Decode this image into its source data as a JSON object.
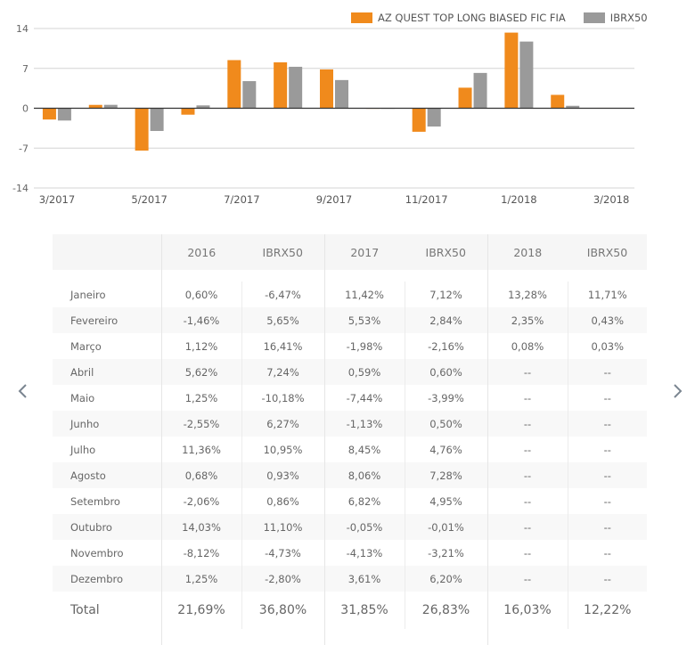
{
  "colors": {
    "fund": "#f08a1c",
    "benchmark": "#9a9a9a",
    "grid": "#d4d4d4",
    "zero_line": "#333333"
  },
  "chart_data": {
    "type": "bar",
    "title": "",
    "xlabel": "",
    "ylabel": "",
    "ylim": [
      -14,
      14
    ],
    "yticks": [
      14,
      7,
      0,
      -7,
      -14
    ],
    "grid": true,
    "legend_position": "top-right",
    "categories": [
      "3/2017",
      "4/2017",
      "5/2017",
      "6/2017",
      "7/2017",
      "8/2017",
      "9/2017",
      "10/2017",
      "11/2017",
      "12/2017",
      "1/2018",
      "2/2018",
      "3/2018"
    ],
    "xtick_labels": [
      "3/2017",
      "",
      "5/2017",
      "",
      "7/2017",
      "",
      "9/2017",
      "",
      "11/2017",
      "",
      "1/2018",
      "",
      "3/2018"
    ],
    "series": [
      {
        "name": "AZ QUEST TOP LONG BIASED FIC FIA",
        "color": "#f08a1c",
        "values": [
          -1.98,
          0.59,
          -7.44,
          -1.13,
          8.45,
          8.06,
          6.82,
          -0.05,
          -4.13,
          3.61,
          13.28,
          2.35,
          0.08
        ]
      },
      {
        "name": "IBRX50",
        "color": "#9a9a9a",
        "values": [
          -2.16,
          0.6,
          -3.99,
          0.5,
          4.76,
          7.28,
          4.95,
          -0.01,
          -3.21,
          6.2,
          11.71,
          0.43,
          0.03
        ]
      }
    ]
  },
  "legend": {
    "fund_label": "AZ QUEST TOP LONG BIASED FIC FIA",
    "benchmark_label": "IBRX50"
  },
  "nav": {
    "prev_icon": "chevron-left-icon",
    "next_icon": "chevron-right-icon"
  },
  "table": {
    "headers": [
      "",
      "2016",
      "IBRX50",
      "2017",
      "IBRX50",
      "2018",
      "IBRX50"
    ],
    "rows": [
      {
        "month": "Janeiro",
        "values": [
          "0,60%",
          "-6,47%",
          "11,42%",
          "7,12%",
          "13,28%",
          "11,71%"
        ]
      },
      {
        "month": "Fevereiro",
        "values": [
          "-1,46%",
          "5,65%",
          "5,53%",
          "2,84%",
          "2,35%",
          "0,43%"
        ]
      },
      {
        "month": "Março",
        "values": [
          "1,12%",
          "16,41%",
          "-1,98%",
          "-2,16%",
          "0,08%",
          "0,03%"
        ]
      },
      {
        "month": "Abril",
        "values": [
          "5,62%",
          "7,24%",
          "0,59%",
          "0,60%",
          "--",
          "--"
        ]
      },
      {
        "month": "Maio",
        "values": [
          "1,25%",
          "-10,18%",
          "-7,44%",
          "-3,99%",
          "--",
          "--"
        ]
      },
      {
        "month": "Junho",
        "values": [
          "-2,55%",
          "6,27%",
          "-1,13%",
          "0,50%",
          "--",
          "--"
        ]
      },
      {
        "month": "Julho",
        "values": [
          "11,36%",
          "10,95%",
          "8,45%",
          "4,76%",
          "--",
          "--"
        ]
      },
      {
        "month": "Agosto",
        "values": [
          "0,68%",
          "0,93%",
          "8,06%",
          "7,28%",
          "--",
          "--"
        ]
      },
      {
        "month": "Setembro",
        "values": [
          "-2,06%",
          "0,86%",
          "6,82%",
          "4,95%",
          "--",
          "--"
        ]
      },
      {
        "month": "Outubro",
        "values": [
          "14,03%",
          "11,10%",
          "-0,05%",
          "-0,01%",
          "--",
          "--"
        ]
      },
      {
        "month": "Novembro",
        "values": [
          "-8,12%",
          "-4,73%",
          "-4,13%",
          "-3,21%",
          "--",
          "--"
        ]
      },
      {
        "month": "Dezembro",
        "values": [
          "1,25%",
          "-2,80%",
          "3,61%",
          "6,20%",
          "--",
          "--"
        ]
      }
    ],
    "total": {
      "label": "Total",
      "values": [
        "21,69%",
        "36,80%",
        "31,85%",
        "26,83%",
        "16,03%",
        "12,22%"
      ]
    }
  }
}
